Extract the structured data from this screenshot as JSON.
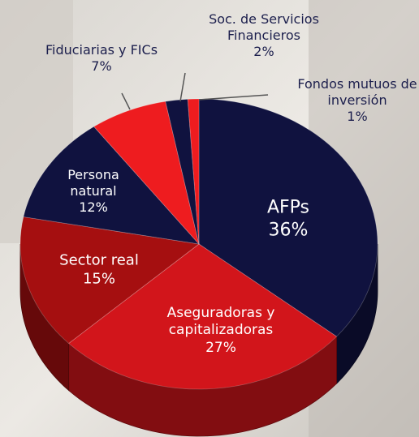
{
  "chart_data": {
    "type": "pie",
    "categories": [
      "AFPs",
      "Aseguradoras y capitalizadoras",
      "Sector real",
      "Persona natural",
      "Fiduciarias y FICs",
      "Soc. de Servicios Financieros",
      "Fondos mutuos de inversión"
    ],
    "values": [
      36,
      27,
      15,
      12,
      7,
      2,
      1
    ],
    "value_labels": [
      "36%",
      "27%",
      "15%",
      "12%",
      "7%",
      "2%",
      "1%"
    ],
    "colors": [
      "#10123f",
      "#d2151b",
      "#a50f10",
      "#10123f",
      "#ee1c1f",
      "#10123f",
      "#ee1c1f"
    ]
  }
}
